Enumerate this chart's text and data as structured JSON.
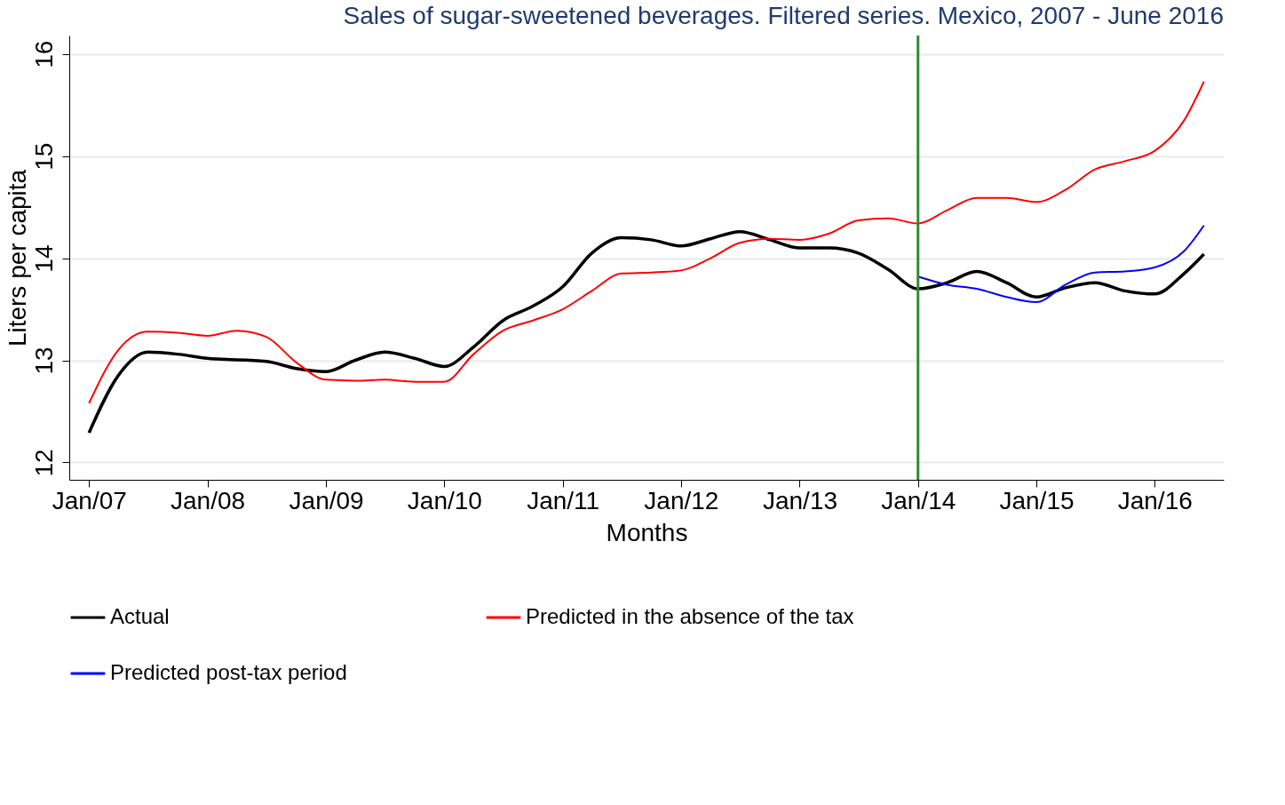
{
  "chart_data": {
    "type": "line",
    "title": "Sales of sugar-sweetened beverages. Filtered series. Mexico, 2007 - June 2016",
    "xlabel": "Months",
    "ylabel": "Liters per capita",
    "xlim": [
      "2006-11",
      "2016-08"
    ],
    "ylim": [
      11.83,
      16.18
    ],
    "yticks": [
      12,
      13,
      14,
      15,
      16
    ],
    "xticks": [
      {
        "value": "2007-01",
        "label": "Jan/07"
      },
      {
        "value": "2008-01",
        "label": "Jan/08"
      },
      {
        "value": "2009-01",
        "label": "Jan/09"
      },
      {
        "value": "2010-01",
        "label": "Jan/10"
      },
      {
        "value": "2011-01",
        "label": "Jan/11"
      },
      {
        "value": "2012-01",
        "label": "Jan/12"
      },
      {
        "value": "2013-01",
        "label": "Jan/13"
      },
      {
        "value": "2014-01",
        "label": "Jan/14"
      },
      {
        "value": "2015-01",
        "label": "Jan/15"
      },
      {
        "value": "2016-01",
        "label": "Jan/16"
      }
    ],
    "grid": "y",
    "legend": "bottom",
    "ref_lines": [
      {
        "axis": "x",
        "value": "2014-01",
        "color": "#2e8b2e"
      }
    ],
    "series": [
      {
        "name": "Actual",
        "color": "#000000",
        "x": [
          "2007-01",
          "2007-04",
          "2007-07",
          "2007-10",
          "2008-01",
          "2008-07",
          "2008-10",
          "2009-01",
          "2009-04",
          "2009-07",
          "2009-10",
          "2010-01",
          "2010-04",
          "2010-07",
          "2010-10",
          "2011-01",
          "2011-04",
          "2011-07",
          "2011-10",
          "2012-01",
          "2012-04",
          "2012-07",
          "2012-10",
          "2013-01",
          "2013-04",
          "2013-07",
          "2013-10",
          "2014-01",
          "2014-04",
          "2014-07",
          "2014-10",
          "2015-01",
          "2015-04",
          "2015-07",
          "2015-10",
          "2016-01",
          "2016-04",
          "2016-06"
        ],
        "values": [
          12.29,
          12.85,
          13.08,
          13.06,
          13.02,
          12.99,
          12.92,
          12.89,
          13.0,
          13.08,
          13.02,
          12.94,
          13.13,
          13.39,
          13.53,
          13.72,
          14.05,
          14.2,
          14.18,
          14.12,
          14.19,
          14.26,
          14.18,
          14.1,
          14.1,
          14.05,
          13.89,
          13.7,
          13.76,
          13.87,
          13.76,
          13.62,
          13.71,
          13.76,
          13.68,
          13.65,
          13.85,
          14.04
        ]
      },
      {
        "name": "Predicted in the absence of the tax",
        "color": "#ff0000",
        "x": [
          "2007-01",
          "2007-04",
          "2007-07",
          "2007-10",
          "2008-01",
          "2008-04",
          "2008-07",
          "2008-10",
          "2009-01",
          "2009-04",
          "2009-07",
          "2009-10",
          "2010-01",
          "2010-04",
          "2010-07",
          "2010-10",
          "2011-01",
          "2011-04",
          "2011-07",
          "2011-10",
          "2012-01",
          "2012-04",
          "2012-07",
          "2012-10",
          "2013-01",
          "2013-04",
          "2013-07",
          "2013-10",
          "2014-01",
          "2014-04",
          "2014-07",
          "2014-10",
          "2015-01",
          "2015-04",
          "2015-07",
          "2015-10",
          "2016-01",
          "2016-04",
          "2016-06"
        ],
        "values": [
          12.58,
          13.1,
          13.28,
          13.27,
          13.24,
          13.29,
          13.23,
          12.98,
          12.81,
          12.8,
          12.81,
          12.79,
          12.79,
          13.06,
          13.29,
          13.39,
          13.5,
          13.68,
          13.85,
          13.86,
          13.88,
          14.0,
          14.15,
          14.19,
          14.18,
          14.24,
          14.37,
          14.39,
          14.34,
          14.47,
          14.59,
          14.59,
          14.55,
          14.67,
          14.87,
          14.95,
          15.05,
          15.35,
          15.73
        ]
      },
      {
        "name": "Predicted post-tax period",
        "color": "#0000ff",
        "x": [
          "2014-01",
          "2014-04",
          "2014-07",
          "2014-10",
          "2015-01",
          "2015-04",
          "2015-07",
          "2015-10",
          "2016-01",
          "2016-04",
          "2016-06"
        ],
        "values": [
          13.82,
          13.74,
          13.7,
          13.62,
          13.57,
          13.74,
          13.86,
          13.87,
          13.91,
          14.07,
          14.32
        ]
      }
    ]
  }
}
